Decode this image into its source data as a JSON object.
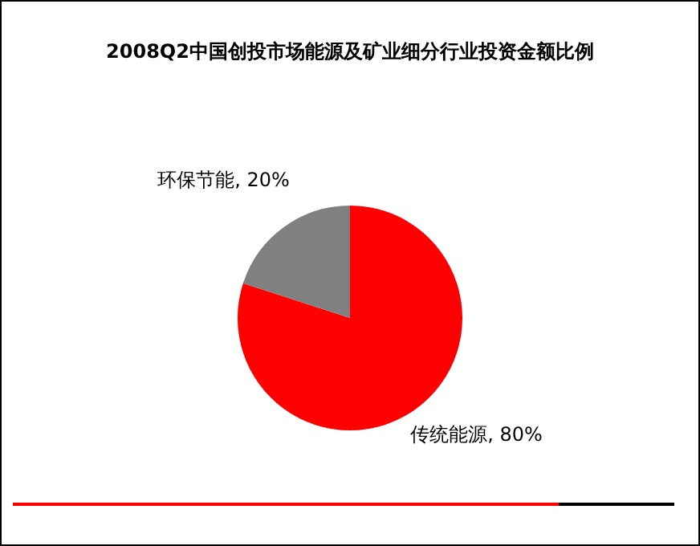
{
  "chart_data": {
    "type": "pie",
    "title": "2008Q2中国创投市场能源及矿业细分行业投资金额比例",
    "categories": [
      "传统能源",
      "环保节能"
    ],
    "values": [
      80,
      20
    ],
    "value_labels": [
      "80%",
      "20%"
    ],
    "colors": [
      "#ff0000",
      "#808080"
    ],
    "legend": false
  }
}
